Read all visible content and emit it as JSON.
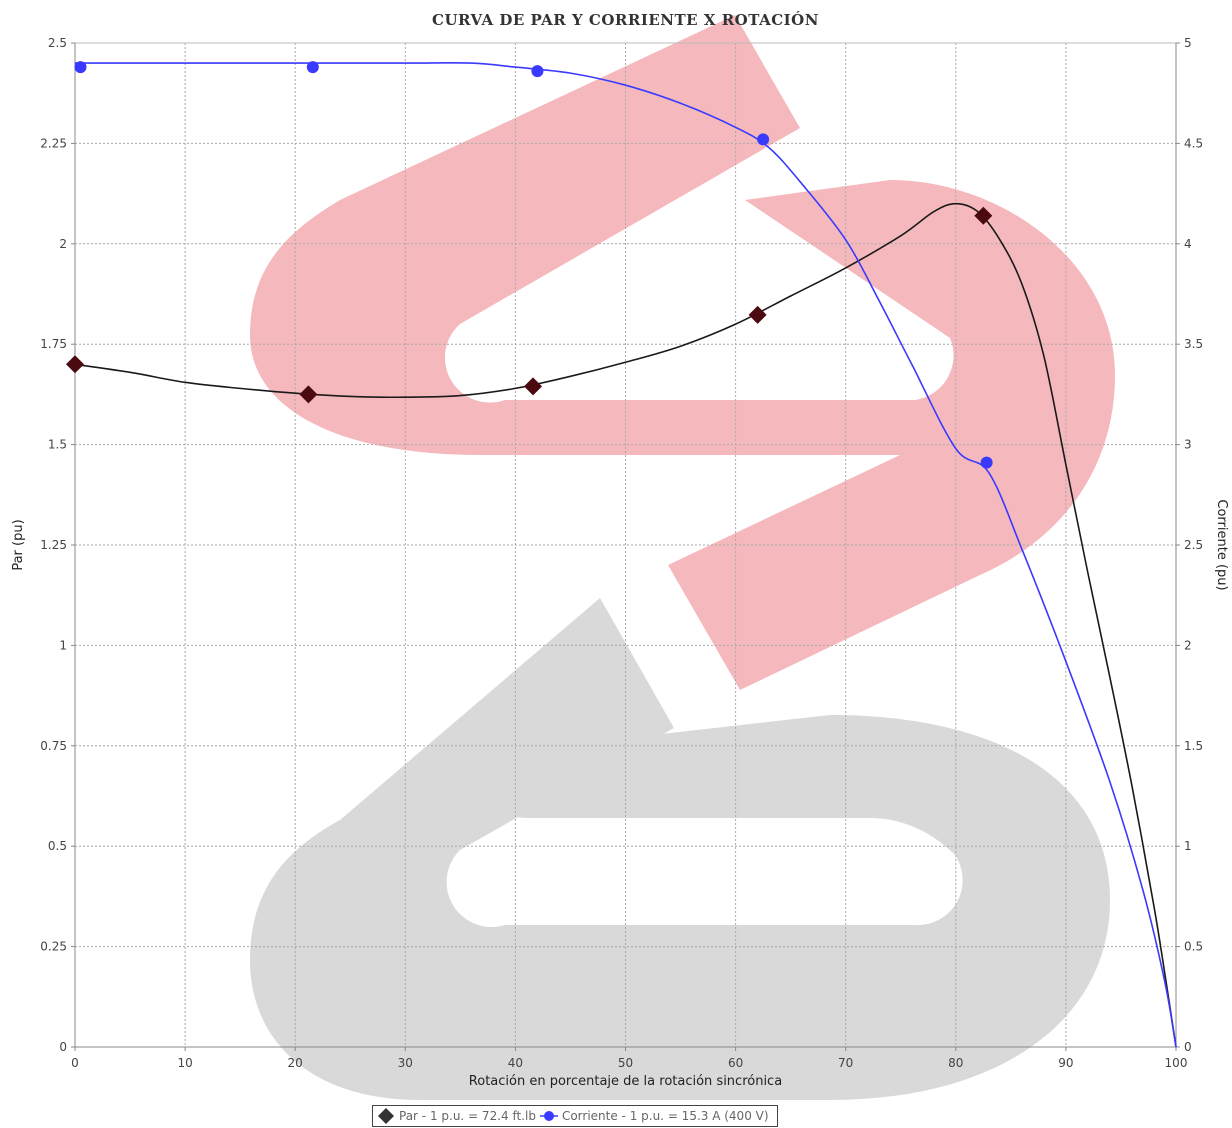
{
  "chart_data": {
    "type": "line",
    "title": "CURVA DE PAR Y CORRIENTE X ROTACIÓN",
    "xlabel": "Rotación en porcentaje de la rotación sincrónica",
    "ylabel_left": "Par (pu)",
    "ylabel_right": "Corriente (pu)",
    "xlim": [
      0,
      100
    ],
    "ylim_left": [
      0,
      2.5
    ],
    "ylim_right": [
      0,
      5
    ],
    "x_ticks": [
      "0",
      "10",
      "20",
      "30",
      "40",
      "50",
      "60",
      "70",
      "80",
      "90",
      "100"
    ],
    "y_left_ticks": [
      "0",
      "0.25",
      "0.5",
      "0.75",
      "1",
      "1.25",
      "1.5",
      "1.75",
      "2",
      "2.25",
      "2.5"
    ],
    "y_right_ticks": [
      "0",
      "0.5",
      "1",
      "1.5",
      "2",
      "2.5",
      "3",
      "3.5",
      "4",
      "4.5",
      "5"
    ],
    "grid": true,
    "legend_position": "bottom",
    "series": [
      {
        "name": "Par - 1 p.u. = 72.4 ft.lb",
        "axis": "left",
        "color": "#1a1a1a",
        "marker_color": "#4a0a10",
        "marker": "diamond",
        "curve": [
          [
            0,
            1.7
          ],
          [
            5,
            1.68
          ],
          [
            10,
            1.655
          ],
          [
            15,
            1.64
          ],
          [
            20,
            1.628
          ],
          [
            25,
            1.62
          ],
          [
            30,
            1.618
          ],
          [
            35,
            1.622
          ],
          [
            40,
            1.64
          ],
          [
            45,
            1.67
          ],
          [
            50,
            1.705
          ],
          [
            55,
            1.745
          ],
          [
            60,
            1.8
          ],
          [
            65,
            1.87
          ],
          [
            70,
            1.94
          ],
          [
            75,
            2.02
          ],
          [
            78,
            2.08
          ],
          [
            80,
            2.1
          ],
          [
            82,
            2.08
          ],
          [
            84,
            2.01
          ],
          [
            86,
            1.9
          ],
          [
            88,
            1.72
          ],
          [
            90,
            1.45
          ],
          [
            92,
            1.18
          ],
          [
            94,
            0.92
          ],
          [
            96,
            0.65
          ],
          [
            98,
            0.35
          ],
          [
            99,
            0.18
          ],
          [
            100,
            0.0
          ]
        ],
        "points": [
          [
            0,
            1.7
          ],
          [
            21.2,
            1.625
          ],
          [
            41.6,
            1.645
          ],
          [
            62,
            1.823
          ],
          [
            82.5,
            2.07
          ]
        ]
      },
      {
        "name": "Corriente - 1 p.u. = 15.3 A (400 V)",
        "axis": "right",
        "color": "#3a3aff",
        "marker_color": "#3a3aff",
        "marker": "circle",
        "curve": [
          [
            0,
            4.9
          ],
          [
            10,
            4.9
          ],
          [
            20,
            4.9
          ],
          [
            30,
            4.9
          ],
          [
            36,
            4.9
          ],
          [
            40,
            4.88
          ],
          [
            45,
            4.85
          ],
          [
            50,
            4.79
          ],
          [
            55,
            4.7
          ],
          [
            60,
            4.58
          ],
          [
            63,
            4.48
          ],
          [
            66,
            4.3
          ],
          [
            70,
            4.02
          ],
          [
            73,
            3.72
          ],
          [
            76,
            3.4
          ],
          [
            80,
            2.98
          ],
          [
            83,
            2.86
          ],
          [
            86,
            2.48
          ],
          [
            90,
            1.92
          ],
          [
            94,
            1.32
          ],
          [
            97,
            0.78
          ],
          [
            99,
            0.32
          ],
          [
            100,
            0.0
          ]
        ],
        "points": [
          [
            0.5,
            4.88
          ],
          [
            21.6,
            4.88
          ],
          [
            42,
            4.86
          ],
          [
            62.5,
            4.52
          ],
          [
            82.8,
            2.91
          ]
        ]
      }
    ]
  },
  "legend": {
    "item1": "Par - 1 p.u. = 72.4 ft.lb",
    "item2": "Corriente - 1 p.u. = 15.3 A (400 V)"
  },
  "watermark": {
    "red": "#f5b9bd",
    "gray": "#d9d9d9"
  }
}
